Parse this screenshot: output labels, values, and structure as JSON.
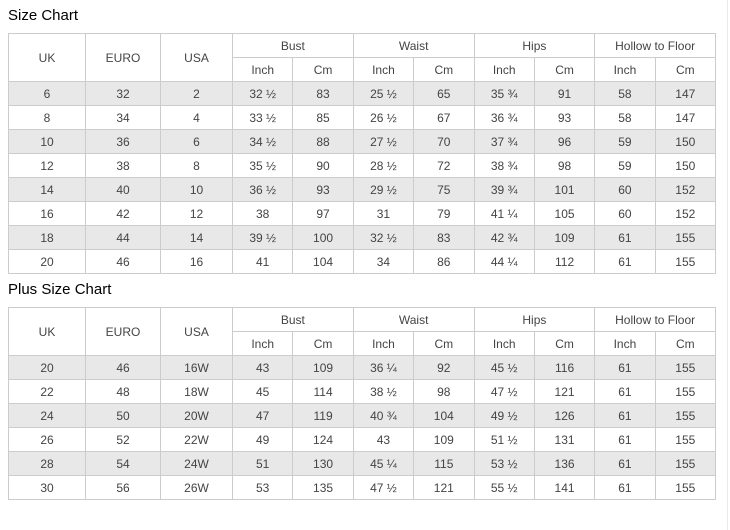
{
  "page": {
    "background": "#ffffff",
    "border_color": "#cccccc",
    "stripe_color": "#e8e8e8",
    "text_color": "#444444",
    "title_color": "#000000"
  },
  "tables": [
    {
      "title": "Size Chart",
      "header": {
        "uk": "UK",
        "euro": "EURO",
        "usa": "USA",
        "groups": [
          "Bust",
          "Waist",
          "Hips",
          "Hollow to Floor"
        ],
        "sub": {
          "inch": "Inch",
          "cm": "Cm"
        }
      },
      "columns": [
        "UK",
        "EURO",
        "USA",
        "Bust Inch",
        "Bust Cm",
        "Waist Inch",
        "Waist Cm",
        "Hips Inch",
        "Hips Cm",
        "Hollow to Floor Inch",
        "Hollow to Floor Cm"
      ],
      "rows": [
        [
          "6",
          "32",
          "2",
          "32 ½",
          "83",
          "25 ½",
          "65",
          "35 ¾",
          "91",
          "58",
          "147"
        ],
        [
          "8",
          "34",
          "4",
          "33 ½",
          "85",
          "26 ½",
          "67",
          "36 ¾",
          "93",
          "58",
          "147"
        ],
        [
          "10",
          "36",
          "6",
          "34 ½",
          "88",
          "27 ½",
          "70",
          "37 ¾",
          "96",
          "59",
          "150"
        ],
        [
          "12",
          "38",
          "8",
          "35 ½",
          "90",
          "28 ½",
          "72",
          "38 ¾",
          "98",
          "59",
          "150"
        ],
        [
          "14",
          "40",
          "10",
          "36 ½",
          "93",
          "29 ½",
          "75",
          "39 ¾",
          "101",
          "60",
          "152"
        ],
        [
          "16",
          "42",
          "12",
          "38",
          "97",
          "31",
          "79",
          "41 ¼",
          "105",
          "60",
          "152"
        ],
        [
          "18",
          "44",
          "14",
          "39 ½",
          "100",
          "32 ½",
          "83",
          "42 ¾",
          "109",
          "61",
          "155"
        ],
        [
          "20",
          "46",
          "16",
          "41",
          "104",
          "34",
          "86",
          "44 ¼",
          "112",
          "61",
          "155"
        ]
      ]
    },
    {
      "title": "Plus Size Chart",
      "header": {
        "uk": "UK",
        "euro": "EURO",
        "usa": "USA",
        "groups": [
          "Bust",
          "Waist",
          "Hips",
          "Hollow to Floor"
        ],
        "sub": {
          "inch": "Inch",
          "cm": "Cm"
        }
      },
      "columns": [
        "UK",
        "EURO",
        "USA",
        "Bust Inch",
        "Bust Cm",
        "Waist Inch",
        "Waist Cm",
        "Hips Inch",
        "Hips Cm",
        "Hollow to Floor Inch",
        "Hollow to Floor Cm"
      ],
      "rows": [
        [
          "20",
          "46",
          "16W",
          "43",
          "109",
          "36 ¼",
          "92",
          "45 ½",
          "116",
          "61",
          "155"
        ],
        [
          "22",
          "48",
          "18W",
          "45",
          "114",
          "38 ½",
          "98",
          "47 ½",
          "121",
          "61",
          "155"
        ],
        [
          "24",
          "50",
          "20W",
          "47",
          "119",
          "40 ¾",
          "104",
          "49 ½",
          "126",
          "61",
          "155"
        ],
        [
          "26",
          "52",
          "22W",
          "49",
          "124",
          "43",
          "109",
          "51 ½",
          "131",
          "61",
          "155"
        ],
        [
          "28",
          "54",
          "24W",
          "51",
          "130",
          "45 ¼",
          "115",
          "53 ½",
          "136",
          "61",
          "155"
        ],
        [
          "30",
          "56",
          "26W",
          "53",
          "135",
          "47 ½",
          "121",
          "55 ½",
          "141",
          "61",
          "155"
        ]
      ]
    }
  ]
}
